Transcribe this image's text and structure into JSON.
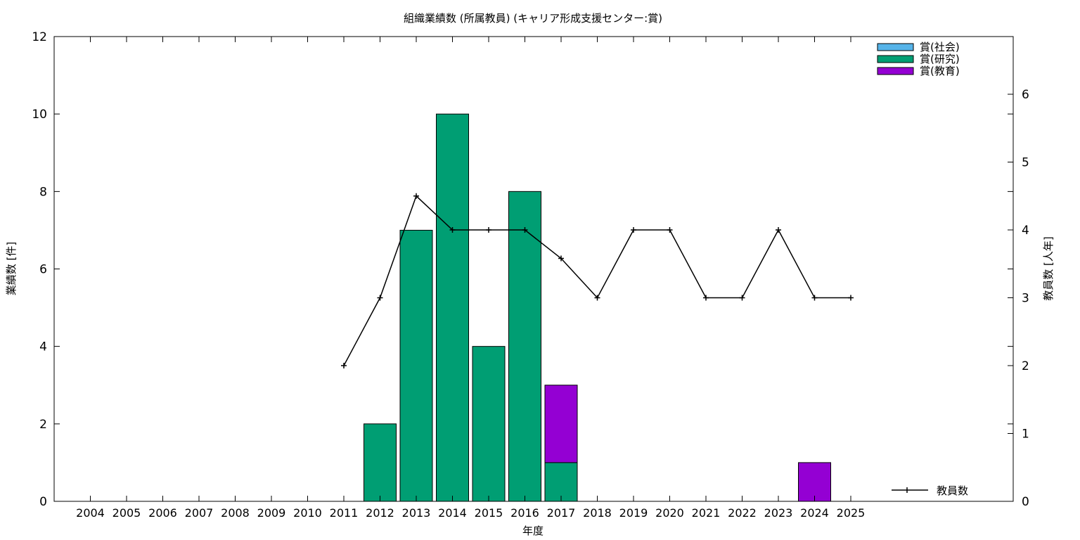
{
  "chart_data": {
    "type": "bar",
    "title": "組織業績数 (所属教員) (キャリア形成支援センター:賞)",
    "xlabel": "年度",
    "ylabel": "業績数 [件]",
    "y2label": "教員数 [人年]",
    "categories": [
      "2004",
      "2005",
      "2006",
      "2007",
      "2008",
      "2009",
      "2010",
      "2011",
      "2012",
      "2013",
      "2014",
      "2015",
      "2016",
      "2017",
      "2018",
      "2019",
      "2020",
      "2021",
      "2022",
      "2023",
      "2024",
      "2025"
    ],
    "ylim": [
      0,
      12
    ],
    "y2lim": [
      0,
      6.85
    ],
    "yticks": [
      "0",
      "2",
      "4",
      "6",
      "8",
      "10",
      "12"
    ],
    "y2ticks": [
      "0",
      "1",
      "2",
      "3",
      "4",
      "5",
      "6"
    ],
    "stacked": true,
    "legend_position": "top-right",
    "series": [
      {
        "name": "賞(社会)",
        "color": "#56b4e9",
        "values": [
          0,
          0,
          0,
          0,
          0,
          0,
          0,
          0,
          0,
          0,
          0,
          0,
          0,
          0,
          0,
          0,
          0,
          0,
          0,
          0,
          0,
          0
        ]
      },
      {
        "name": "賞(研究)",
        "color": "#009e73",
        "values": [
          0,
          0,
          0,
          0,
          0,
          0,
          0,
          0,
          2,
          7,
          10,
          4,
          8,
          1,
          0,
          0,
          0,
          0,
          0,
          0,
          0,
          0
        ]
      },
      {
        "name": "賞(教育)",
        "color": "#9400d3",
        "values": [
          0,
          0,
          0,
          0,
          0,
          0,
          0,
          0,
          0,
          0,
          0,
          0,
          0,
          2,
          0,
          0,
          0,
          0,
          0,
          0,
          1,
          0
        ]
      }
    ],
    "line_series": {
      "name": "教員数",
      "axis": "right",
      "color": "#000000",
      "x": [
        "2011",
        "2012",
        "2013",
        "2014",
        "2015",
        "2016",
        "2017",
        "2018",
        "2019",
        "2020",
        "2021",
        "2022",
        "2023",
        "2024",
        "2025"
      ],
      "values": [
        2,
        3,
        4.5,
        4,
        4,
        4,
        3.58,
        3,
        4,
        4,
        3,
        3,
        4,
        3,
        3
      ]
    }
  }
}
